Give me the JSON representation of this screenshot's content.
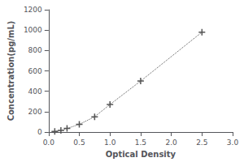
{
  "chart_data": {
    "type": "line",
    "x": [
      0.1,
      0.2,
      0.3,
      0.5,
      0.75,
      1.0,
      1.5,
      2.5
    ],
    "values": [
      5,
      15,
      35,
      75,
      150,
      270,
      500,
      980
    ],
    "xlabel": "Optical Density",
    "ylabel": "Concentration(pg/mL)",
    "xlim": [
      0,
      3
    ],
    "ylim": [
      0,
      1200
    ],
    "xticks": [
      {
        "value": 0,
        "label": "0.0"
      },
      {
        "value": 0.5,
        "label": "0.5"
      },
      {
        "value": 1,
        "label": "1.0"
      },
      {
        "value": 1.5,
        "label": "1.5"
      },
      {
        "value": 2,
        "label": "2.0"
      },
      {
        "value": 2.5,
        "label": "2.5"
      },
      {
        "value": 3,
        "label": "3.0"
      }
    ],
    "yticks": [
      0,
      200,
      400,
      600,
      800,
      1000,
      1200
    ],
    "color": "#555555",
    "marker": "plus",
    "line_style": "dotted",
    "grid": false
  }
}
